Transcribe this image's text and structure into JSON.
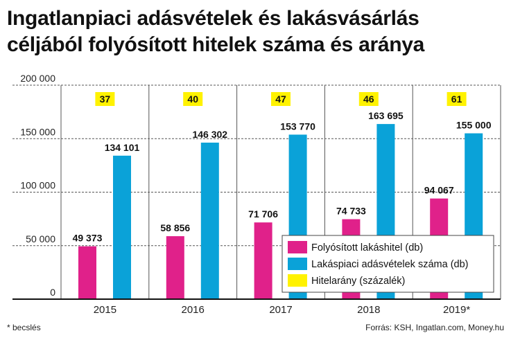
{
  "title_lines": [
    "Ingatlanpiaci adásvételek és lakásvásárlás",
    "céljából folyósított hitelek száma és aránya"
  ],
  "footnote": "* becslés",
  "source": "Forrás: KSH, Ingatlan.com, Money.hu",
  "colors": {
    "loan": "#e0218a",
    "sales": "#0aa2d8",
    "ratio": "#fff200",
    "grid": "#555555",
    "axis": "#111111"
  },
  "chart_data": {
    "type": "bar",
    "categories": [
      "2015",
      "2016",
      "2017",
      "2018",
      "2019*"
    ],
    "series": [
      {
        "name": "Folyósított lakáshitel (db)",
        "values": [
          49373,
          58856,
          71706,
          74733,
          94067
        ],
        "labels": [
          "49 373",
          "58 856",
          "71 706",
          "74 733",
          "94 067"
        ]
      },
      {
        "name": "Lakáspiaci adásvételek száma (db)",
        "values": [
          134101,
          146302,
          153770,
          163695,
          155000
        ],
        "labels": [
          "134 101",
          "146 302",
          "153 770",
          "163 695",
          "155 000"
        ]
      },
      {
        "name": "Hitelarány (százalék)",
        "values": [
          37,
          40,
          47,
          46,
          61
        ]
      }
    ],
    "ylim": [
      0,
      200000
    ],
    "yticks": [
      0,
      50000,
      100000,
      150000,
      200000
    ],
    "ytick_labels": [
      "0",
      "50 000",
      "100 000",
      "150 000",
      "200 000"
    ],
    "grid": true,
    "legend_position": "bottom-right"
  }
}
